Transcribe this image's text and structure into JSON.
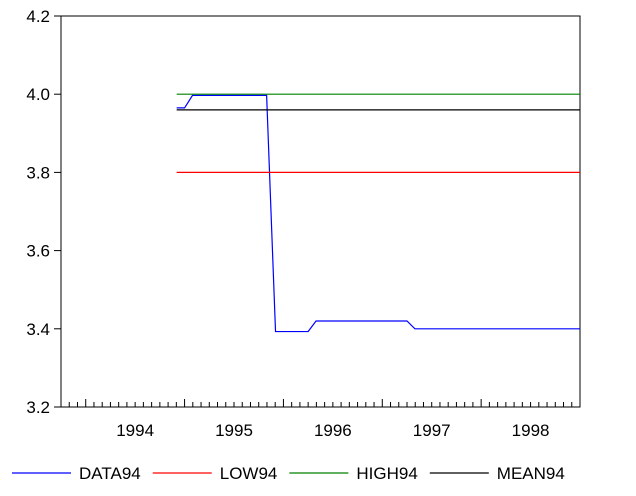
{
  "chart_data": {
    "type": "line",
    "title": "",
    "xlabel": "",
    "ylabel": "",
    "xlim": [
      1993.75,
      1999.0
    ],
    "ylim": [
      3.2,
      4.2
    ],
    "x_ticks": [
      "1994",
      "1995",
      "1996",
      "1997",
      "1998"
    ],
    "y_ticks": [
      "3.2",
      "3.4",
      "3.6",
      "3.8",
      "4.0",
      "4.2"
    ],
    "grid": false,
    "legend": "bottom",
    "series": [
      {
        "name": "DATA94",
        "color": "#0000ff",
        "x": [
          1994.92,
          1995.0,
          1995.08,
          1995.17,
          1995.25,
          1995.33,
          1995.42,
          1995.5,
          1995.58,
          1995.67,
          1995.75,
          1995.83,
          1995.92,
          1996.0,
          1996.08,
          1996.17,
          1996.25,
          1996.33,
          1996.42,
          1996.5,
          1996.58,
          1996.67,
          1996.75,
          1996.83,
          1996.92,
          1997.0,
          1997.08,
          1997.17,
          1997.25,
          1997.33,
          1997.42,
          1997.5,
          1997.58,
          1997.67,
          1997.75,
          1997.83,
          1997.92,
          1998.0,
          1998.08,
          1998.17,
          1998.25,
          1998.33,
          1998.42,
          1998.5,
          1998.58,
          1998.67,
          1998.75,
          1998.83,
          1998.92,
          1999.0
        ],
        "y": [
          3.965,
          3.965,
          3.997,
          3.997,
          3.997,
          3.997,
          3.997,
          3.997,
          3.997,
          3.997,
          3.997,
          3.997,
          3.393,
          3.393,
          3.393,
          3.393,
          3.393,
          3.42,
          3.42,
          3.42,
          3.42,
          3.42,
          3.42,
          3.42,
          3.42,
          3.42,
          3.42,
          3.42,
          3.42,
          3.4,
          3.4,
          3.4,
          3.4,
          3.4,
          3.4,
          3.4,
          3.4,
          3.4,
          3.4,
          3.4,
          3.4,
          3.4,
          3.4,
          3.4,
          3.4,
          3.4,
          3.4,
          3.4,
          3.4,
          3.4
        ]
      },
      {
        "name": "LOW94",
        "color": "#ff0000",
        "x": [
          1994.92,
          1999.0
        ],
        "y": [
          3.8,
          3.8
        ]
      },
      {
        "name": "HIGH94",
        "color": "#008000",
        "x": [
          1994.92,
          1999.0
        ],
        "y": [
          4.0,
          4.0
        ]
      },
      {
        "name": "MEAN94",
        "color": "#000000",
        "x": [
          1994.92,
          1999.0
        ],
        "y": [
          3.96,
          3.96
        ]
      }
    ]
  }
}
